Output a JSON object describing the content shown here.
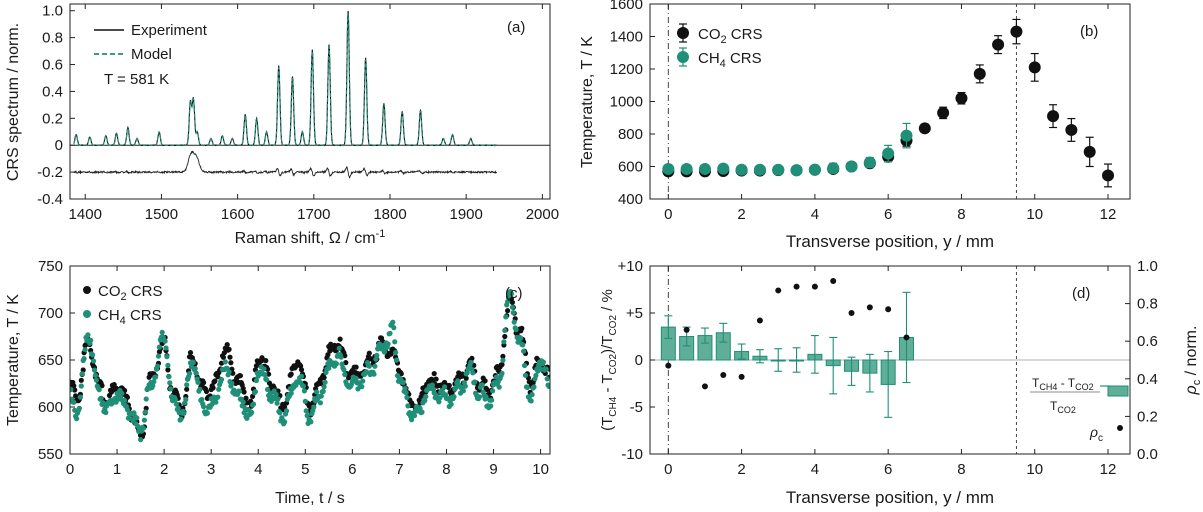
{
  "colors": {
    "black": "#111111",
    "teal": "#1f8f78",
    "teal_fill": "#5fae98"
  },
  "chart_data": [
    {
      "panel": "(a)",
      "type": "line",
      "xlabel": "Raman shift, Ω / cm-1",
      "ylabel": "CRS spectrum / norm.",
      "xlim": [
        1380,
        2010
      ],
      "ylim": [
        -0.4,
        1.05
      ],
      "xticks": [
        1400,
        1500,
        1600,
        1700,
        1800,
        1900,
        2000
      ],
      "yticks": [
        -0.4,
        -0.2,
        0,
        0.2,
        0.4,
        0.6,
        0.8,
        1.0
      ],
      "ytick_labels": [
        "-0.4",
        "-0.2",
        "0",
        "0.2",
        "0.4",
        "0.6",
        "0.8",
        "1.0"
      ],
      "legend": [
        "Experiment",
        "Model"
      ],
      "annotation": "T = 581 K",
      "peaks": [
        [
          1388,
          0.08
        ],
        [
          1406,
          0.06
        ],
        [
          1427,
          0.07
        ],
        [
          1441,
          0.09
        ],
        [
          1456,
          0.13
        ],
        [
          1468,
          0.05
        ],
        [
          1497,
          0.1
        ],
        [
          1538,
          0.32
        ],
        [
          1542,
          0.34
        ],
        [
          1547,
          0.1
        ],
        [
          1565,
          0.05
        ],
        [
          1580,
          0.07
        ],
        [
          1593,
          0.05
        ],
        [
          1610,
          0.23
        ],
        [
          1625,
          0.2
        ],
        [
          1638,
          0.1
        ],
        [
          1654,
          0.59
        ],
        [
          1672,
          0.51
        ],
        [
          1685,
          0.1
        ],
        [
          1698,
          0.71
        ],
        [
          1720,
          0.75
        ],
        [
          1745,
          1.0
        ],
        [
          1768,
          0.65
        ],
        [
          1792,
          0.31
        ],
        [
          1816,
          0.25
        ],
        [
          1840,
          0.26
        ],
        [
          1870,
          0.05
        ],
        [
          1882,
          0.08
        ],
        [
          1906,
          0.05
        ]
      ],
      "residual_baseline": -0.2
    },
    {
      "panel": "(b)",
      "type": "scatter",
      "xlabel": "Transverse position, y / mm",
      "ylabel": "Temperature, T / K",
      "xlim": [
        -0.5,
        12.6
      ],
      "ylim": [
        400,
        1600
      ],
      "xticks": [
        0,
        2,
        4,
        6,
        8,
        10,
        12
      ],
      "yticks": [
        400,
        600,
        800,
        1000,
        1200,
        1400,
        1600
      ],
      "vlines": [
        0,
        9.5
      ],
      "series": [
        {
          "name": "CO2 CRS",
          "x": [
            0,
            0.5,
            1,
            1.5,
            2,
            2.5,
            3,
            3.5,
            4,
            4.5,
            5,
            5.5,
            6,
            6.5,
            7,
            7.5,
            8,
            8.5,
            9,
            9.5,
            10,
            10.5,
            11,
            11.5,
            12
          ],
          "y": [
            570,
            570,
            570,
            572,
            575,
            575,
            578,
            577,
            580,
            585,
            600,
            620,
            660,
            760,
            835,
            930,
            1020,
            1170,
            1350,
            1430,
            1210,
            910,
            825,
            690,
            545
          ],
          "err": [
            15,
            15,
            15,
            15,
            15,
            15,
            15,
            15,
            15,
            20,
            20,
            25,
            30,
            35,
            25,
            35,
            35,
            55,
            55,
            75,
            85,
            70,
            70,
            90,
            70
          ]
        },
        {
          "name": "CH4 CRS",
          "x": [
            0,
            0.5,
            1,
            1.5,
            2,
            2.5,
            3,
            3.5,
            4,
            4.5,
            5,
            5.5,
            6,
            6.5
          ],
          "y": [
            585,
            585,
            585,
            587,
            580,
            580,
            580,
            577,
            580,
            590,
            600,
            625,
            680,
            790
          ],
          "err": [
            15,
            20,
            20,
            20,
            20,
            15,
            15,
            20,
            20,
            30,
            25,
            30,
            50,
            75
          ]
        }
      ]
    },
    {
      "panel": "(c)",
      "type": "line",
      "xlabel": "Time, t / s",
      "ylabel": "Temperature, T / K",
      "xlim": [
        0,
        10.2
      ],
      "ylim": [
        550,
        750
      ],
      "xticks": [
        0,
        1,
        2,
        3,
        4,
        5,
        6,
        7,
        8,
        9,
        10
      ],
      "yticks": [
        550,
        600,
        650,
        700,
        750
      ],
      "series": [
        {
          "name": "CO2 CRS",
          "keypoints": [
            [
              0,
              620
            ],
            [
              0.15,
              612
            ],
            [
              0.4,
              670
            ],
            [
              0.6,
              625
            ],
            [
              0.8,
              605
            ],
            [
              1.0,
              625
            ],
            [
              1.2,
              605
            ],
            [
              1.5,
              570
            ],
            [
              1.7,
              625
            ],
            [
              2.0,
              668
            ],
            [
              2.2,
              610
            ],
            [
              2.4,
              600
            ],
            [
              2.6,
              655
            ],
            [
              2.8,
              620
            ],
            [
              3.0,
              615
            ],
            [
              3.3,
              660
            ],
            [
              3.6,
              625
            ],
            [
              3.85,
              600
            ],
            [
              4.0,
              655
            ],
            [
              4.3,
              625
            ],
            [
              4.5,
              600
            ],
            [
              4.85,
              650
            ],
            [
              5.1,
              600
            ],
            [
              5.3,
              625
            ],
            [
              5.5,
              655
            ],
            [
              5.7,
              670
            ],
            [
              5.9,
              640
            ],
            [
              6.1,
              635
            ],
            [
              6.4,
              650
            ],
            [
              6.6,
              665
            ],
            [
              6.8,
              660
            ],
            [
              7.0,
              640
            ],
            [
              7.2,
              605
            ],
            [
              7.4,
              600
            ],
            [
              7.6,
              628
            ],
            [
              7.8,
              625
            ],
            [
              8.1,
              620
            ],
            [
              8.3,
              630
            ],
            [
              8.5,
              645
            ],
            [
              8.7,
              625
            ],
            [
              8.9,
              618
            ],
            [
              9.1,
              635
            ],
            [
              9.35,
              712
            ],
            [
              9.55,
              680
            ],
            [
              9.8,
              625
            ],
            [
              10.0,
              650
            ],
            [
              10.2,
              630
            ]
          ]
        },
        {
          "name": "CH4 CRS",
          "keypoints": [
            [
              0,
              610
            ],
            [
              0.15,
              595
            ],
            [
              0.4,
              678
            ],
            [
              0.6,
              615
            ],
            [
              0.8,
              598
            ],
            [
              1.0,
              615
            ],
            [
              1.2,
              598
            ],
            [
              1.5,
              575
            ],
            [
              1.7,
              620
            ],
            [
              2.0,
              672
            ],
            [
              2.2,
              600
            ],
            [
              2.4,
              595
            ],
            [
              2.6,
              650
            ],
            [
              2.8,
              605
            ],
            [
              3.0,
              600
            ],
            [
              3.3,
              640
            ],
            [
              3.6,
              610
            ],
            [
              3.85,
              590
            ],
            [
              4.0,
              640
            ],
            [
              4.3,
              615
            ],
            [
              4.5,
              590
            ],
            [
              4.85,
              630
            ],
            [
              5.1,
              590
            ],
            [
              5.3,
              612
            ],
            [
              5.5,
              640
            ],
            [
              5.7,
              655
            ],
            [
              5.9,
              625
            ],
            [
              6.1,
              625
            ],
            [
              6.4,
              640
            ],
            [
              6.6,
              660
            ],
            [
              6.85,
              680
            ],
            [
              7.0,
              632
            ],
            [
              7.2,
              598
            ],
            [
              7.4,
              592
            ],
            [
              7.6,
              618
            ],
            [
              7.8,
              612
            ],
            [
              8.1,
              610
            ],
            [
              8.3,
              620
            ],
            [
              8.5,
              640
            ],
            [
              8.7,
              615
            ],
            [
              8.9,
              608
            ],
            [
              9.1,
              625
            ],
            [
              9.35,
              718
            ],
            [
              9.55,
              670
            ],
            [
              9.8,
              610
            ],
            [
              10.0,
              650
            ],
            [
              10.2,
              620
            ]
          ]
        }
      ]
    },
    {
      "panel": "(d)",
      "type": "bar",
      "xlabel": "Transverse position, y / mm",
      "ylabel_left": "(TCH4 - TCO2)/TCO2 / %",
      "ylabel_right": "ρc / norm.",
      "xlim": [
        -0.5,
        12.6
      ],
      "ylim_left": [
        -10,
        10
      ],
      "ylim_right": [
        0,
        1.0
      ],
      "xticks": [
        0,
        2,
        4,
        6,
        8,
        10,
        12
      ],
      "yticks_left": [
        -10,
        -5,
        0,
        5,
        10
      ],
      "ytick_labels_left": [
        "-10",
        "-5",
        "0",
        "+5",
        "+10"
      ],
      "yticks_right": [
        0,
        0.2,
        0.4,
        0.6,
        0.8,
        1.0
      ],
      "ytick_labels_right": [
        "0.0",
        "0.2",
        "0.4",
        "0.6",
        "0.8",
        "1.0"
      ],
      "vlines": [
        0,
        9.5
      ],
      "bars": {
        "x": [
          0,
          0.5,
          1,
          1.5,
          2,
          2.5,
          3,
          3.5,
          4,
          4.5,
          5,
          5.5,
          6,
          6.5
        ],
        "y": [
          3.5,
          2.5,
          2.6,
          2.9,
          0.9,
          0.4,
          0.0,
          0.0,
          0.6,
          -0.6,
          -1.2,
          -1.4,
          -2.6,
          2.4
        ],
        "err": [
          1.2,
          1.0,
          0.8,
          1.0,
          0.8,
          0.7,
          1.2,
          1.3,
          2.0,
          3.0,
          1.5,
          2.0,
          3.5,
          4.8
        ]
      },
      "rho_c": {
        "x": [
          0,
          0.5,
          1,
          1.5,
          2,
          2.5,
          3,
          3.5,
          4,
          4.5,
          5,
          5.5,
          6,
          6.5
        ],
        "y": [
          0.47,
          0.66,
          0.36,
          0.42,
          0.41,
          0.71,
          0.87,
          0.89,
          0.89,
          0.92,
          0.75,
          0.78,
          0.77,
          0.62
        ]
      },
      "legend_bar_label_top": "TCH4 - TCO2",
      "legend_bar_label_bottom": "TCO2",
      "legend_dot_label": "ρc"
    }
  ]
}
